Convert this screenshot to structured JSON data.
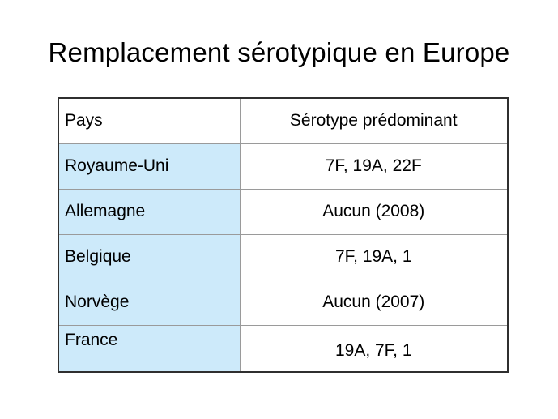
{
  "title": "Remplacement sérotypique en Europe",
  "table": {
    "headers": [
      "Pays",
      "Sérotype prédominant"
    ],
    "rows": [
      [
        "Royaume-Uni",
        "7F, 19A, 22F"
      ],
      [
        "Allemagne",
        "Aucun (2008)"
      ],
      [
        "Belgique",
        "7F, 19A, 1"
      ],
      [
        "Norvège",
        "Aucun (2007)"
      ],
      [
        "France",
        "19A, 7F, 1"
      ]
    ]
  },
  "colors": {
    "country_cell_fill": "#cdeafa",
    "outer_border": "#2f2f2f",
    "inner_border": "#9a9a9a"
  }
}
